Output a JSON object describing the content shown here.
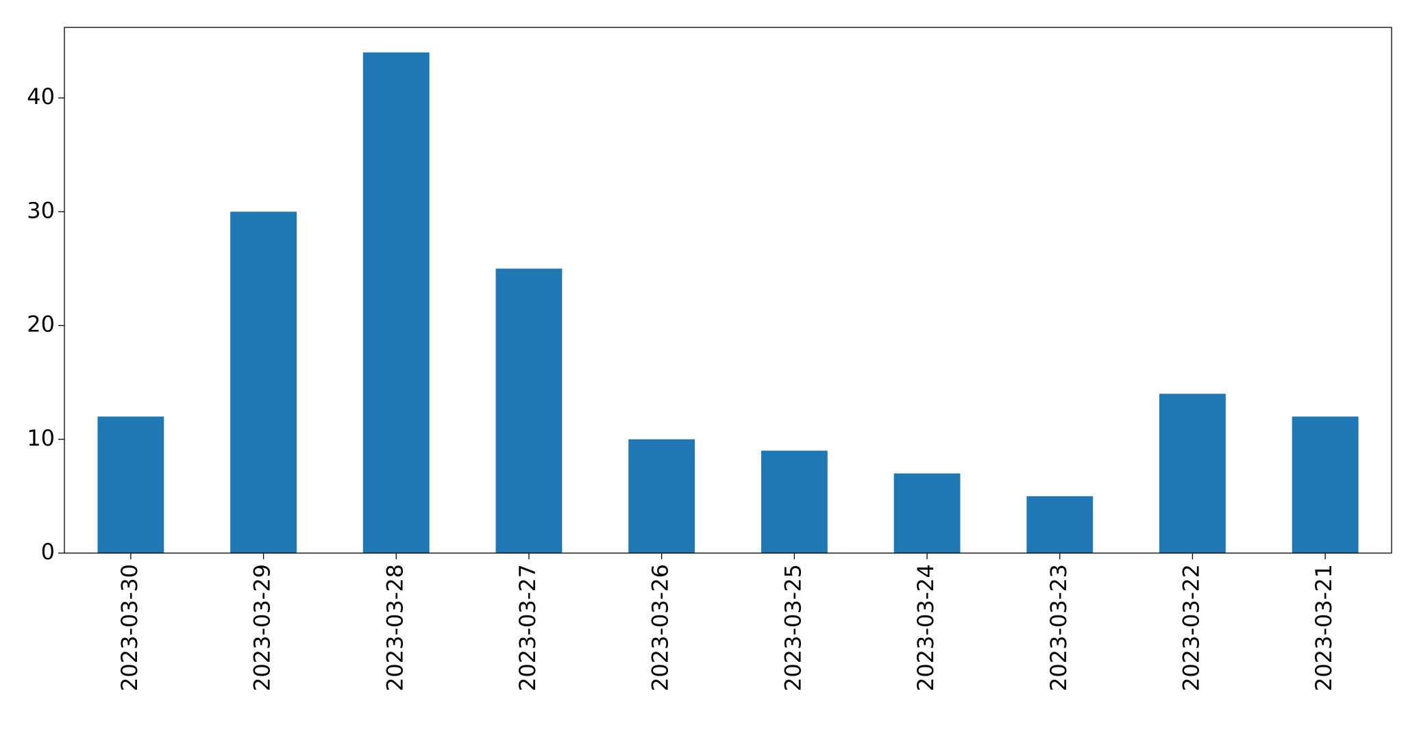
{
  "chart_data": {
    "type": "bar",
    "categories": [
      "2023-03-30",
      "2023-03-29",
      "2023-03-28",
      "2023-03-27",
      "2023-03-26",
      "2023-03-25",
      "2023-03-24",
      "2023-03-23",
      "2023-03-22",
      "2023-03-21"
    ],
    "values": [
      12,
      30,
      44,
      25,
      10,
      9,
      7,
      5,
      14,
      12
    ],
    "color": "#1f77b4",
    "ylim": [
      0,
      46.2
    ],
    "yticks": [
      0,
      10,
      20,
      30,
      40
    ],
    "grid": false
  }
}
